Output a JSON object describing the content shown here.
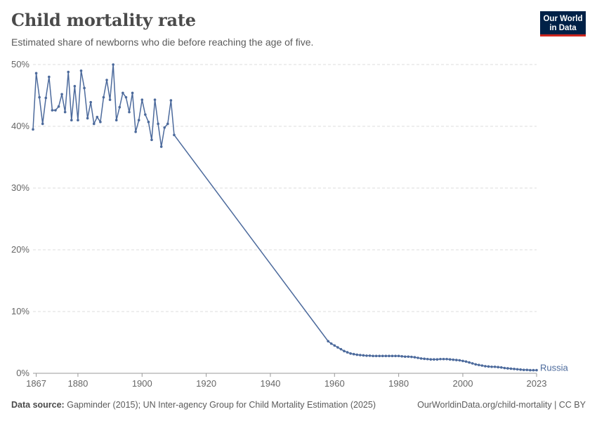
{
  "header": {
    "title": "Child mortality rate",
    "subtitle": "Estimated share of newborns who die before reaching the age of five."
  },
  "logo": {
    "line1": "Our World",
    "line2": "in Data"
  },
  "footer": {
    "source_label": "Data source:",
    "source_text": "Gapminder (2015); UN Inter-agency Group for Child Mortality Estimation (2025)",
    "right_text": "OurWorldinData.org/child-mortality | CC BY"
  },
  "colors": {
    "series": "#4c6a9c",
    "grid": "#dddddd",
    "logo_bg": "#002147",
    "logo_accent": "#ce261e"
  },
  "chart_data": {
    "type": "line",
    "title": "Child mortality rate",
    "subtitle": "Estimated share of newborns who die before reaching the age of five.",
    "xlim": [
      1866,
      2023
    ],
    "ylim": [
      0,
      50
    ],
    "x_ticks": [
      1867,
      1880,
      1900,
      1920,
      1940,
      1960,
      1980,
      2000,
      2023
    ],
    "y_ticks": [
      0,
      10,
      20,
      30,
      40,
      50
    ],
    "y_tick_labels": [
      "0%",
      "10%",
      "20%",
      "30%",
      "40%",
      "50%"
    ],
    "grid": "horizontal-dashed",
    "legend": "end-of-line label",
    "series": [
      {
        "name": "Russia",
        "color": "#4c6a9c",
        "x": [
          1866,
          1867,
          1868,
          1869,
          1870,
          1871,
          1872,
          1873,
          1874,
          1875,
          1876,
          1877,
          1878,
          1879,
          1880,
          1881,
          1882,
          1883,
          1884,
          1885,
          1886,
          1887,
          1888,
          1889,
          1890,
          1891,
          1892,
          1893,
          1894,
          1895,
          1896,
          1897,
          1898,
          1899,
          1900,
          1901,
          1902,
          1903,
          1904,
          1905,
          1906,
          1907,
          1908,
          1909,
          1910,
          1958,
          1959,
          1960,
          1961,
          1962,
          1963,
          1964,
          1965,
          1966,
          1967,
          1968,
          1969,
          1970,
          1971,
          1972,
          1973,
          1974,
          1975,
          1976,
          1977,
          1978,
          1979,
          1980,
          1981,
          1982,
          1983,
          1984,
          1985,
          1986,
          1987,
          1988,
          1989,
          1990,
          1991,
          1992,
          1993,
          1994,
          1995,
          1996,
          1997,
          1998,
          1999,
          2000,
          2001,
          2002,
          2003,
          2004,
          2005,
          2006,
          2007,
          2008,
          2009,
          2010,
          2011,
          2012,
          2013,
          2014,
          2015,
          2016,
          2017,
          2018,
          2019,
          2020,
          2021,
          2022,
          2023
        ],
        "values": [
          39.5,
          48.6,
          44.7,
          40.4,
          44.6,
          48.0,
          42.6,
          42.6,
          43.2,
          45.2,
          42.3,
          48.8,
          41.0,
          46.5,
          41.0,
          49.0,
          46.2,
          41.3,
          43.9,
          40.4,
          41.5,
          40.7,
          44.7,
          47.5,
          44.3,
          50.0,
          41.0,
          43.1,
          45.4,
          44.7,
          42.3,
          45.4,
          39.1,
          41.0,
          44.3,
          41.9,
          40.7,
          37.8,
          44.3,
          40.4,
          36.7,
          39.8,
          40.4,
          44.2,
          38.6,
          5.2,
          4.8,
          4.5,
          4.2,
          3.9,
          3.6,
          3.4,
          3.2,
          3.1,
          3.0,
          2.95,
          2.9,
          2.85,
          2.85,
          2.8,
          2.8,
          2.8,
          2.8,
          2.8,
          2.8,
          2.8,
          2.8,
          2.8,
          2.75,
          2.7,
          2.7,
          2.65,
          2.6,
          2.5,
          2.4,
          2.35,
          2.3,
          2.25,
          2.25,
          2.25,
          2.3,
          2.3,
          2.3,
          2.25,
          2.2,
          2.15,
          2.1,
          2.0,
          1.9,
          1.75,
          1.6,
          1.45,
          1.35,
          1.25,
          1.15,
          1.1,
          1.05,
          1.05,
          1.0,
          0.95,
          0.85,
          0.8,
          0.75,
          0.7,
          0.65,
          0.6,
          0.55,
          0.55,
          0.5,
          0.5,
          0.5
        ]
      }
    ],
    "end_label": "Russia"
  }
}
